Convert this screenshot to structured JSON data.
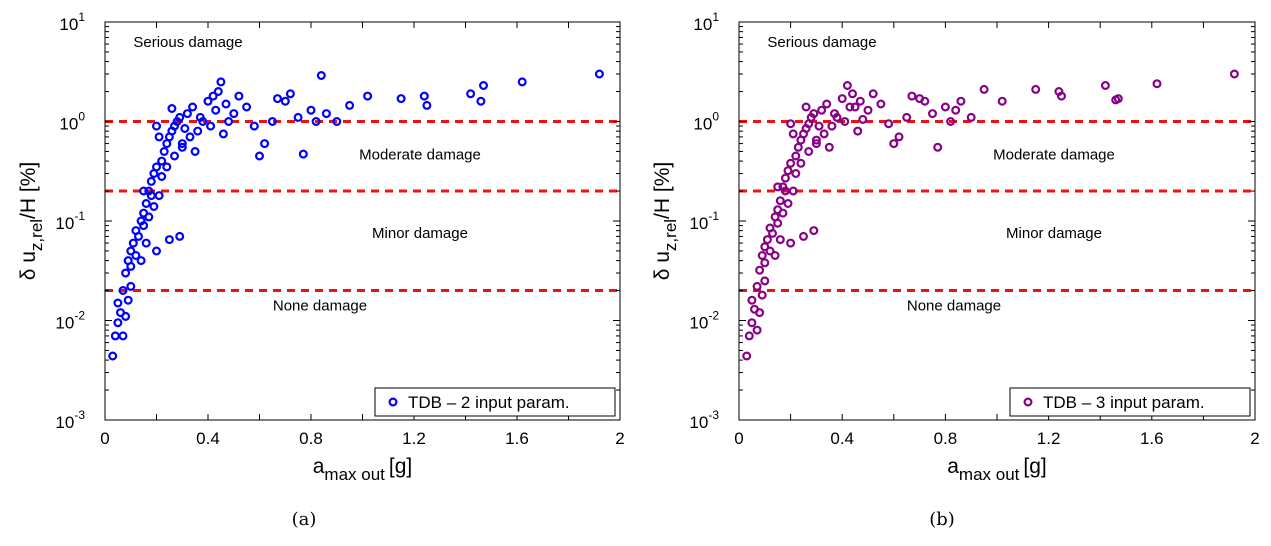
{
  "chart_data": [
    {
      "panel": "a",
      "caption": "(a)",
      "type": "scatter",
      "xlabel": "a",
      "xlabel_sub": "max out",
      "xlabel_unit": "[g]",
      "ylabel": "δ u",
      "ylabel_sub": "z,rel",
      "ylabel_unit": "/H [%]",
      "xlim": [
        0,
        2
      ],
      "ylim": [
        0.001,
        10
      ],
      "yscale": "log",
      "x_ticks": [
        "0",
        "0.4",
        "0.8",
        "1.2",
        "1.6",
        "2"
      ],
      "y_ticks": [
        {
          "base": "10",
          "exp": "-3"
        },
        {
          "base": "10",
          "exp": "-2"
        },
        {
          "base": "10",
          "exp": "-1"
        },
        {
          "base": "10",
          "exp": "0"
        },
        {
          "base": "10",
          "exp": "1"
        }
      ],
      "thresholds": [
        1.0,
        0.2,
        0.02
      ],
      "threshold_color": "#ee1111",
      "zones": [
        "Serious damage",
        "Moderate damage",
        "Minor damage",
        "None damage"
      ],
      "legend": {
        "label": "TDB – 2 input param.",
        "position": "bottom-right"
      },
      "marker_color": "#0000ff",
      "series": [
        {
          "name": "TDB – 2 input param.",
          "points": [
            [
              0.03,
              0.0044
            ],
            [
              0.04,
              0.007
            ],
            [
              0.05,
              0.0095
            ],
            [
              0.06,
              0.012
            ],
            [
              0.07,
              0.007
            ],
            [
              0.08,
              0.011
            ],
            [
              0.09,
              0.016
            ],
            [
              0.1,
              0.022
            ],
            [
              0.05,
              0.015
            ],
            [
              0.07,
              0.02
            ],
            [
              0.08,
              0.03
            ],
            [
              0.09,
              0.04
            ],
            [
              0.1,
              0.05
            ],
            [
              0.11,
              0.06
            ],
            [
              0.12,
              0.08
            ],
            [
              0.13,
              0.07
            ],
            [
              0.1,
              0.035
            ],
            [
              0.12,
              0.045
            ],
            [
              0.14,
              0.1
            ],
            [
              0.15,
              0.12
            ],
            [
              0.16,
              0.15
            ],
            [
              0.17,
              0.2
            ],
            [
              0.18,
              0.25
            ],
            [
              0.19,
              0.3
            ],
            [
              0.2,
              0.35
            ],
            [
              0.15,
              0.09
            ],
            [
              0.17,
              0.11
            ],
            [
              0.19,
              0.14
            ],
            [
              0.21,
              0.18
            ],
            [
              0.22,
              0.4
            ],
            [
              0.23,
              0.5
            ],
            [
              0.24,
              0.6
            ],
            [
              0.25,
              0.7
            ],
            [
              0.26,
              0.8
            ],
            [
              0.27,
              0.9
            ],
            [
              0.28,
              1.0
            ],
            [
              0.2,
              0.05
            ],
            [
              0.25,
              0.065
            ],
            [
              0.29,
              0.07
            ],
            [
              0.3,
              0.6
            ],
            [
              0.32,
              1.2
            ],
            [
              0.34,
              1.4
            ],
            [
              0.36,
              0.8
            ],
            [
              0.38,
              1.0
            ],
            [
              0.4,
              1.6
            ],
            [
              0.42,
              1.8
            ],
            [
              0.44,
              2.0
            ],
            [
              0.45,
              2.5
            ],
            [
              0.47,
              1.5
            ],
            [
              0.5,
              1.2
            ],
            [
              0.52,
              1.8
            ],
            [
              0.55,
              1.4
            ],
            [
              0.58,
              0.9
            ],
            [
              0.6,
              0.45
            ],
            [
              0.62,
              0.6
            ],
            [
              0.65,
              1.0
            ],
            [
              0.67,
              1.7
            ],
            [
              0.7,
              1.6
            ],
            [
              0.72,
              1.9
            ],
            [
              0.75,
              1.1
            ],
            [
              0.77,
              0.47
            ],
            [
              0.8,
              1.3
            ],
            [
              0.82,
              1.0
            ],
            [
              0.84,
              2.9
            ],
            [
              0.86,
              1.2
            ],
            [
              0.9,
              1.0
            ],
            [
              0.95,
              1.45
            ],
            [
              1.02,
              1.8
            ],
            [
              1.15,
              1.7
            ],
            [
              1.24,
              1.8
            ],
            [
              1.25,
              1.45
            ],
            [
              1.42,
              1.9
            ],
            [
              1.47,
              2.3
            ],
            [
              1.46,
              1.6
            ],
            [
              1.62,
              2.5
            ],
            [
              1.92,
              3.0
            ],
            [
              0.15,
              0.2
            ],
            [
              0.18,
              0.18
            ],
            [
              0.22,
              0.28
            ],
            [
              0.24,
              0.35
            ],
            [
              0.27,
              0.45
            ],
            [
              0.3,
              0.55
            ],
            [
              0.33,
              0.7
            ],
            [
              0.35,
              0.5
            ],
            [
              0.37,
              1.1
            ],
            [
              0.41,
              0.9
            ],
            [
              0.43,
              1.3
            ],
            [
              0.46,
              0.75
            ],
            [
              0.48,
              1.0
            ],
            [
              0.26,
              1.35
            ],
            [
              0.29,
              1.1
            ],
            [
              0.31,
              0.85
            ],
            [
              0.2,
              0.9
            ],
            [
              0.21,
              0.7
            ],
            [
              0.16,
              0.06
            ],
            [
              0.14,
              0.04
            ]
          ]
        }
      ]
    },
    {
      "panel": "b",
      "caption": "(b)",
      "type": "scatter",
      "xlabel": "a",
      "xlabel_sub": "max out",
      "xlabel_unit": "[g]",
      "ylabel": "δ u",
      "ylabel_sub": "z,rel",
      "ylabel_unit": "/H [%]",
      "xlim": [
        0,
        2
      ],
      "ylim": [
        0.001,
        10
      ],
      "yscale": "log",
      "x_ticks": [
        "0",
        "0.4",
        "0.8",
        "1.2",
        "1.6",
        "2"
      ],
      "y_ticks": [
        {
          "base": "10",
          "exp": "-3"
        },
        {
          "base": "10",
          "exp": "-2"
        },
        {
          "base": "10",
          "exp": "-1"
        },
        {
          "base": "10",
          "exp": "0"
        },
        {
          "base": "10",
          "exp": "1"
        }
      ],
      "thresholds": [
        1.0,
        0.2,
        0.02
      ],
      "threshold_color": "#ee1111",
      "zones": [
        "Serious damage",
        "Moderate damage",
        "Minor damage",
        "None damage"
      ],
      "legend": {
        "label": "TDB – 3 input param.",
        "position": "bottom-right"
      },
      "marker_color": "#880088",
      "series": [
        {
          "name": "TDB – 3 input param.",
          "points": [
            [
              0.03,
              0.0044
            ],
            [
              0.04,
              0.007
            ],
            [
              0.05,
              0.0095
            ],
            [
              0.06,
              0.013
            ],
            [
              0.07,
              0.008
            ],
            [
              0.08,
              0.012
            ],
            [
              0.09,
              0.018
            ],
            [
              0.1,
              0.025
            ],
            [
              0.05,
              0.016
            ],
            [
              0.07,
              0.022
            ],
            [
              0.08,
              0.032
            ],
            [
              0.09,
              0.045
            ],
            [
              0.1,
              0.055
            ],
            [
              0.11,
              0.065
            ],
            [
              0.12,
              0.085
            ],
            [
              0.13,
              0.075
            ],
            [
              0.1,
              0.038
            ],
            [
              0.12,
              0.05
            ],
            [
              0.14,
              0.11
            ],
            [
              0.15,
              0.13
            ],
            [
              0.16,
              0.16
            ],
            [
              0.17,
              0.22
            ],
            [
              0.18,
              0.27
            ],
            [
              0.19,
              0.32
            ],
            [
              0.2,
              0.38
            ],
            [
              0.15,
              0.095
            ],
            [
              0.17,
              0.12
            ],
            [
              0.19,
              0.15
            ],
            [
              0.21,
              0.2
            ],
            [
              0.22,
              0.45
            ],
            [
              0.23,
              0.55
            ],
            [
              0.24,
              0.65
            ],
            [
              0.25,
              0.75
            ],
            [
              0.26,
              0.85
            ],
            [
              0.27,
              0.95
            ],
            [
              0.28,
              1.1
            ],
            [
              0.2,
              0.06
            ],
            [
              0.25,
              0.07
            ],
            [
              0.29,
              0.08
            ],
            [
              0.3,
              0.65
            ],
            [
              0.32,
              1.3
            ],
            [
              0.34,
              1.5
            ],
            [
              0.36,
              0.9
            ],
            [
              0.38,
              1.1
            ],
            [
              0.4,
              1.7
            ],
            [
              0.42,
              2.3
            ],
            [
              0.44,
              1.9
            ],
            [
              0.45,
              1.4
            ],
            [
              0.47,
              1.6
            ],
            [
              0.5,
              1.3
            ],
            [
              0.52,
              1.9
            ],
            [
              0.55,
              1.5
            ],
            [
              0.58,
              0.95
            ],
            [
              0.6,
              0.6
            ],
            [
              0.62,
              0.7
            ],
            [
              0.65,
              1.1
            ],
            [
              0.67,
              1.8
            ],
            [
              0.7,
              1.7
            ],
            [
              0.72,
              1.6
            ],
            [
              0.75,
              1.2
            ],
            [
              0.77,
              0.55
            ],
            [
              0.8,
              1.4
            ],
            [
              0.82,
              1.0
            ],
            [
              0.84,
              1.3
            ],
            [
              0.86,
              1.6
            ],
            [
              0.9,
              1.1
            ],
            [
              0.95,
              2.1
            ],
            [
              1.02,
              1.6
            ],
            [
              1.15,
              2.1
            ],
            [
              1.24,
              2.0
            ],
            [
              1.25,
              1.8
            ],
            [
              1.42,
              2.3
            ],
            [
              1.47,
              1.7
            ],
            [
              1.46,
              1.65
            ],
            [
              1.62,
              2.4
            ],
            [
              1.92,
              3.0
            ],
            [
              0.15,
              0.22
            ],
            [
              0.18,
              0.2
            ],
            [
              0.22,
              0.3
            ],
            [
              0.24,
              0.38
            ],
            [
              0.27,
              0.5
            ],
            [
              0.3,
              0.6
            ],
            [
              0.33,
              0.75
            ],
            [
              0.35,
              0.55
            ],
            [
              0.37,
              1.2
            ],
            [
              0.41,
              1.0
            ],
            [
              0.43,
              1.4
            ],
            [
              0.46,
              0.8
            ],
            [
              0.48,
              1.05
            ],
            [
              0.26,
              1.4
            ],
            [
              0.29,
              1.2
            ],
            [
              0.31,
              0.9
            ],
            [
              0.2,
              0.95
            ],
            [
              0.21,
              0.75
            ],
            [
              0.16,
              0.065
            ],
            [
              0.14,
              0.045
            ]
          ]
        }
      ]
    }
  ]
}
